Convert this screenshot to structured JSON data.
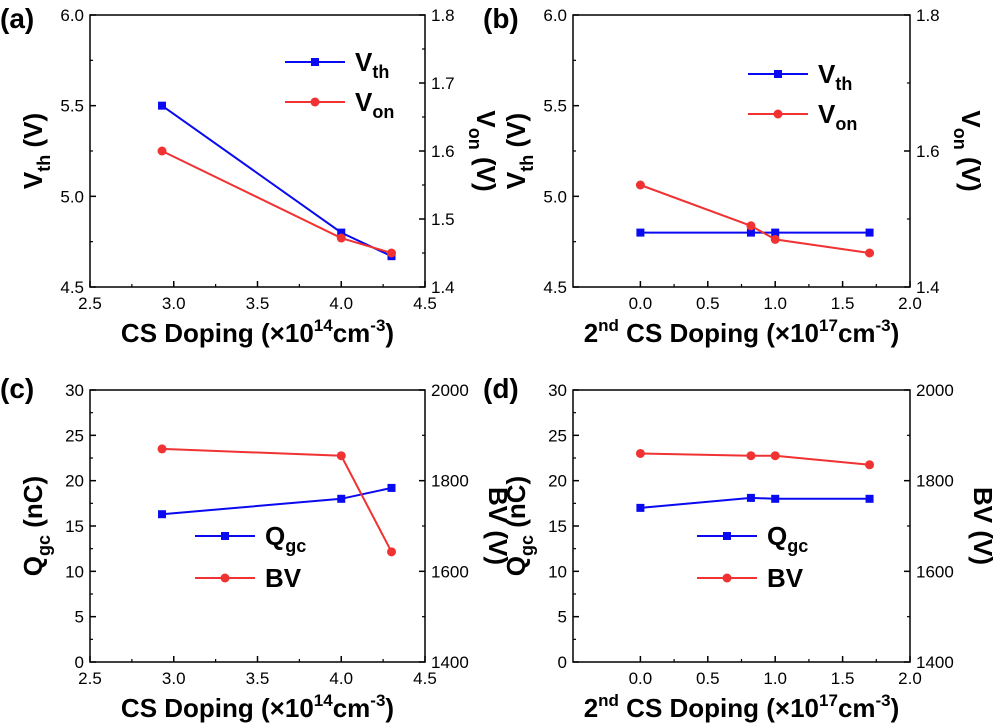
{
  "colors": {
    "blue": "#0a0af0",
    "red": "#f03232",
    "axis": "#000000"
  },
  "chart_data": [
    {
      "id": "a",
      "panel_label": "(a)",
      "type": "line",
      "xlabel": "CS Doping (×10¹⁴cm⁻³)",
      "xlabel_parts": [
        "CS Doping (×10",
        "14",
        "cm",
        "-3",
        ")"
      ],
      "ylabel_left": "Vth (V)",
      "ylabel_left_parts": [
        "V",
        "th",
        " (V)"
      ],
      "ylabel_right": "Von (V)",
      "ylabel_right_parts": [
        "V",
        "on",
        " (V)"
      ],
      "xlim": [
        2.5,
        4.5
      ],
      "ylim_left": [
        4.5,
        6.0
      ],
      "ylim_right": [
        1.4,
        1.8
      ],
      "x_ticks": [
        "2.5",
        "3.0",
        "3.5",
        "4.0",
        "4.5"
      ],
      "y_left_ticks": [
        "4.5",
        "5.0",
        "5.5",
        "6.0"
      ],
      "y_right_ticks": [
        "1.4",
        "1.5",
        "1.6",
        "1.7",
        "1.8"
      ],
      "legend_position": "top-right",
      "series": [
        {
          "name": "Vth",
          "name_parts": [
            "V",
            "th"
          ],
          "axis": "left",
          "color": "#0a0af0",
          "marker": "square",
          "x": [
            2.93,
            4.0,
            4.3
          ],
          "y": [
            5.5,
            4.8,
            4.67
          ]
        },
        {
          "name": "Von",
          "name_parts": [
            "V",
            "on"
          ],
          "axis": "right",
          "color": "#f03232",
          "marker": "circle",
          "x": [
            2.93,
            4.0,
            4.3
          ],
          "y": [
            1.6,
            1.472,
            1.45
          ]
        }
      ]
    },
    {
      "id": "b",
      "panel_label": "(b)",
      "type": "line",
      "xlabel": "2nd CS Doping (×10¹⁷cm⁻³)",
      "xlabel_parts": [
        "2",
        "nd",
        " CS Doping (×10",
        "17",
        "cm",
        "-3",
        ")"
      ],
      "ylabel_left": "Vth (V)",
      "ylabel_left_parts": [
        "V",
        "th",
        " (V)"
      ],
      "ylabel_right": "Von (V)",
      "ylabel_right_parts": [
        "V",
        "on",
        " (V)"
      ],
      "xlim": [
        -0.5,
        2.0
      ],
      "ylim_left": [
        4.5,
        6.0
      ],
      "ylim_right": [
        1.4,
        1.8
      ],
      "x_ticks": [
        "0.0",
        "0.5",
        "1.0",
        "1.5",
        "2.0"
      ],
      "y_left_ticks": [
        "4.5",
        "5.0",
        "5.5",
        "6.0"
      ],
      "y_right_ticks": [
        "1.4",
        "1.6",
        "1.8"
      ],
      "legend_position": "top-right",
      "series": [
        {
          "name": "Vth",
          "name_parts": [
            "V",
            "th"
          ],
          "axis": "left",
          "color": "#0a0af0",
          "marker": "square",
          "x": [
            0.0,
            0.82,
            1.0,
            1.7
          ],
          "y": [
            4.8,
            4.8,
            4.8,
            4.8
          ]
        },
        {
          "name": "Von",
          "name_parts": [
            "V",
            "on"
          ],
          "axis": "right",
          "color": "#f03232",
          "marker": "circle",
          "x": [
            0.0,
            0.82,
            1.0,
            1.7
          ],
          "y": [
            1.55,
            1.49,
            1.47,
            1.45
          ]
        }
      ]
    },
    {
      "id": "c",
      "panel_label": "(c)",
      "type": "line",
      "xlabel": "CS Doping (×10¹⁴cm⁻³)",
      "xlabel_parts": [
        "CS Doping (×10",
        "14",
        "cm",
        "-3",
        ")"
      ],
      "ylabel_left": "Qgc (nC)",
      "ylabel_left_parts": [
        "Q",
        "gc",
        " (nC)"
      ],
      "ylabel_right": "BV (V)",
      "ylabel_right_parts": [
        "BV (V)",
        "",
        ""
      ],
      "xlim": [
        2.5,
        4.5
      ],
      "ylim_left": [
        0,
        30
      ],
      "ylim_right": [
        1400,
        2000
      ],
      "x_ticks": [
        "2.5",
        "3.0",
        "3.5",
        "4.0",
        "4.5"
      ],
      "y_left_ticks": [
        "0",
        "5",
        "10",
        "15",
        "20",
        "25",
        "30"
      ],
      "y_right_ticks": [
        "1400",
        "1600",
        "1800",
        "2000"
      ],
      "legend_position": "lower-center",
      "series": [
        {
          "name": "Qgc",
          "name_parts": [
            "Q",
            "gc"
          ],
          "axis": "left",
          "color": "#0a0af0",
          "marker": "square",
          "x": [
            2.93,
            4.0,
            4.3
          ],
          "y": [
            16.3,
            18.0,
            19.2
          ]
        },
        {
          "name": "BV",
          "name_parts": [
            "BV",
            ""
          ],
          "axis": "right",
          "color": "#f03232",
          "marker": "circle",
          "x": [
            2.93,
            4.0,
            4.3
          ],
          "y": [
            1870,
            1855,
            1643
          ]
        }
      ]
    },
    {
      "id": "d",
      "panel_label": "(d)",
      "type": "line",
      "xlabel": "2nd CS Doping (×10¹⁷cm⁻³)",
      "xlabel_parts": [
        "2",
        "nd",
        " CS Doping (×10",
        "17",
        "cm",
        "-3",
        ")"
      ],
      "ylabel_left": "Qgc (nC)",
      "ylabel_left_parts": [
        "Q",
        "gc",
        " (nC)"
      ],
      "ylabel_right": "BV (V)",
      "ylabel_right_parts": [
        "BV (V)",
        "",
        ""
      ],
      "xlim": [
        -0.5,
        2.0
      ],
      "ylim_left": [
        0,
        30
      ],
      "ylim_right": [
        1400,
        2000
      ],
      "x_ticks": [
        "0.0",
        "0.5",
        "1.0",
        "1.5",
        "2.0"
      ],
      "y_left_ticks": [
        "0",
        "5",
        "10",
        "15",
        "20",
        "25",
        "30"
      ],
      "y_right_ticks": [
        "1400",
        "1600",
        "1800",
        "2000"
      ],
      "legend_position": "lower-center",
      "series": [
        {
          "name": "Qgc",
          "name_parts": [
            "Q",
            "gc"
          ],
          "axis": "left",
          "color": "#0a0af0",
          "marker": "square",
          "x": [
            0.0,
            0.82,
            1.0,
            1.7
          ],
          "y": [
            17.0,
            18.1,
            18.0,
            18.0
          ]
        },
        {
          "name": "BV",
          "name_parts": [
            "BV",
            ""
          ],
          "axis": "right",
          "color": "#f03232",
          "marker": "circle",
          "x": [
            0.0,
            0.82,
            1.0,
            1.7
          ],
          "y": [
            1860,
            1855,
            1855,
            1835
          ]
        }
      ]
    }
  ]
}
